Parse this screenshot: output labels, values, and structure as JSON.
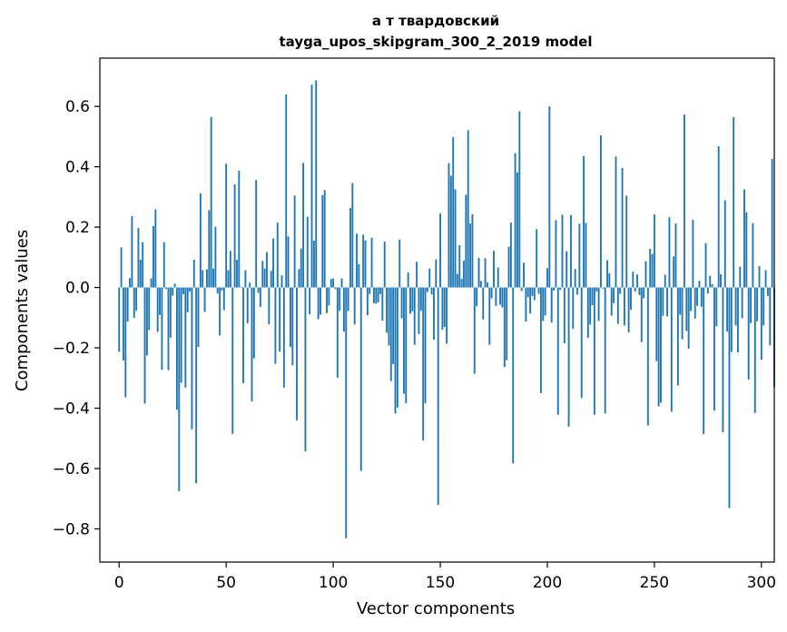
{
  "chart_data": {
    "type": "bar",
    "title": "а т твардовский",
    "subtitle": "tayga_upos_skipgram_300_2_2019 model",
    "xlabel": "Vector components",
    "ylabel": "Components values",
    "xlim": [
      -9,
      306
    ],
    "ylim": [
      -0.91,
      0.76
    ],
    "xticks": [
      0,
      50,
      100,
      150,
      200,
      250,
      300
    ],
    "xtick_labels": [
      "0",
      "50",
      "100",
      "150",
      "200",
      "250",
      "300"
    ],
    "yticks": [
      -0.8,
      -0.6,
      -0.4,
      -0.2,
      0.0,
      0.2,
      0.4,
      0.6
    ],
    "ytick_labels": [
      "−0.8",
      "−0.6",
      "−0.4",
      "−0.2",
      "0.0",
      "0.2",
      "0.4",
      "0.6"
    ],
    "grid": false,
    "bar_color": "#1f77b4",
    "values": [
      -0.213,
      0.133,
      -0.242,
      -0.364,
      -0.113,
      0.031,
      0.236,
      -0.101,
      -0.077,
      0.197,
      0.092,
      0.15,
      -0.385,
      -0.225,
      -0.141,
      0.03,
      0.204,
      0.259,
      -0.147,
      -0.091,
      -0.273,
      0.15,
      -0.005,
      -0.274,
      -0.166,
      -0.027,
      0.013,
      -0.405,
      -0.675,
      -0.316,
      -0.022,
      -0.332,
      -0.082,
      -0.014,
      -0.47,
      0.092,
      -0.649,
      -0.197,
      0.312,
      0.057,
      -0.081,
      0.06,
      0.256,
      0.565,
      0.063,
      0.201,
      -0.02,
      -0.159,
      -0.01,
      -0.075,
      0.41,
      0.057,
      0.121,
      -0.485,
      0.342,
      0.092,
      0.387,
      0.002,
      -0.317,
      0.057,
      -0.119,
      0.016,
      -0.378,
      -0.235,
      0.356,
      -0.018,
      -0.064,
      0.088,
      0.063,
      0.117,
      -0.122,
      0.055,
      0.162,
      -0.253,
      0.215,
      -0.213,
      0.04,
      -0.332,
      0.64,
      0.169,
      -0.197,
      -0.258,
      0.305,
      -0.44,
      0.061,
      0.129,
      0.413,
      -0.543,
      0.234,
      -0.089,
      0.672,
      0.155,
      0.686,
      -0.105,
      -0.09,
      0.306,
      0.323,
      -0.085,
      -0.06,
      0.028,
      0.03,
      -0.005,
      -0.299,
      -0.077,
      0.03,
      -0.146,
      -0.831,
      -0.078,
      0.263,
      0.346,
      -0.123,
      0.178,
      0.077,
      -0.608,
      0.175,
      0.156,
      -0.092,
      -0.022,
      0.165,
      -0.052,
      -0.054,
      -0.049,
      -0.022,
      -0.11,
      0.152,
      -0.15,
      -0.192,
      -0.31,
      -0.254,
      -0.418,
      -0.398,
      0.159,
      -0.102,
      -0.352,
      -0.384,
      0.05,
      -0.087,
      -0.079,
      -0.19,
      0.085,
      -0.155,
      -0.077,
      -0.507,
      -0.384,
      -0.015,
      0.063,
      -0.023,
      -0.173,
      0.093,
      -0.721,
      0.245,
      -0.14,
      -0.131,
      -0.186,
      0.412,
      0.37,
      0.498,
      0.325,
      0.045,
      0.14,
      0.028,
      0.089,
      0.307,
      0.521,
      0.212,
      0.243,
      -0.286,
      -0.062,
      0.098,
      0.022,
      -0.106,
      0.097,
      0.017,
      -0.19,
      -0.036,
      0.121,
      -0.061,
      0.066,
      -0.057,
      -0.066,
      -0.264,
      -0.241,
      0.135,
      0.215,
      -0.583,
      0.445,
      0.381,
      0.584,
      -0.012,
      0.082,
      -0.113,
      -0.032,
      -0.086,
      -0.028,
      -0.042,
      0.193,
      -0.021,
      -0.35,
      -0.111,
      -0.093,
      0.064,
      0.6,
      -0.116,
      -0.01,
      0.223,
      -0.422,
      -0.008,
      0.241,
      -0.185,
      0.12,
      -0.461,
      0.24,
      -0.137,
      0.061,
      -0.024,
      0.211,
      -0.366,
      0.435,
      0.214,
      -0.167,
      -0.123,
      -0.059,
      -0.422,
      -0.013,
      -0.111,
      0.504,
      -0.004,
      -0.418,
      0.09,
      0.047,
      -0.093,
      -0.052,
      0.434,
      -0.121,
      -0.021,
      0.396,
      -0.126,
      0.304,
      -0.149,
      -0.074,
      0.052,
      -0.013,
      0.043,
      -0.025,
      -0.181,
      -0.036,
      0.087,
      -0.457,
      0.128,
      0.111,
      0.242,
      -0.244,
      -0.394,
      -0.382,
      -0.094,
      0.042,
      -0.096,
      0.233,
      -0.412,
      0.103,
      0.212,
      -0.325,
      -0.09,
      -0.172,
      0.573,
      -0.144,
      -0.203,
      -0.078,
      0.224,
      -0.103,
      -0.061,
      0.022,
      -0.064,
      -0.486,
      0.147,
      -0.02,
      0.039,
      0.011,
      -0.408,
      -0.128,
      0.468,
      0.044,
      -0.48,
      0.289,
      -0.146,
      -0.731,
      -0.214,
      0.564,
      -0.126,
      -0.215,
      0.069,
      -0.102,
      0.325,
      0.249,
      -0.305,
      -0.118,
      0.213,
      -0.416,
      -0.112,
      0.071,
      -0.24,
      -0.126,
      0.057,
      -0.028,
      -0.192,
      0.426,
      -0.33
    ],
    "bar_rel_width": 0.8
  }
}
